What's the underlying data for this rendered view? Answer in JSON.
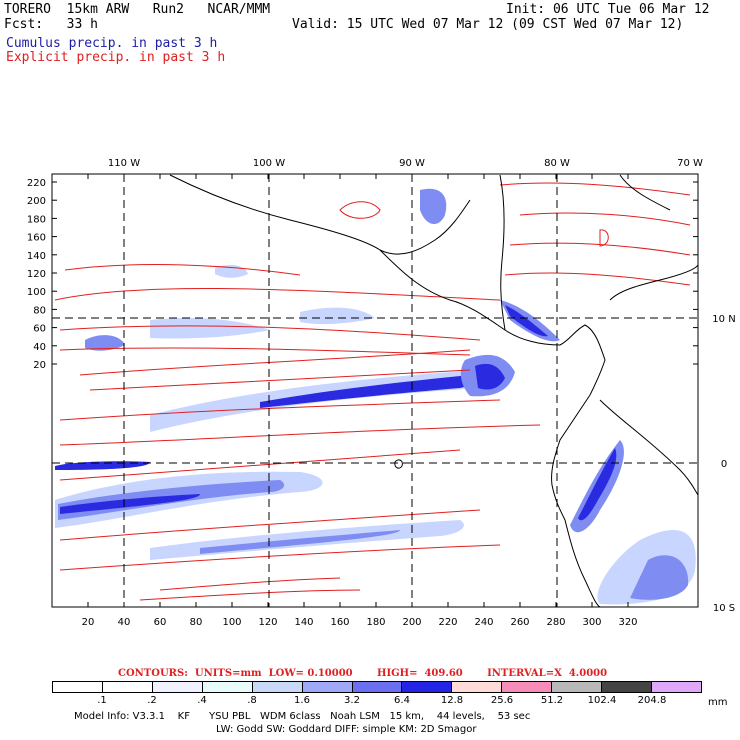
{
  "header": {
    "model": "TORERO  15km ARW   Run2   NCAR/MMM",
    "init": "Init: 06 UTC Tue 06 Mar 12",
    "fcst_label": "Fcst:   33 h",
    "valid": "Valid: 15 UTC Wed 07 Mar 12 (09 CST Wed 07 Mar 12)",
    "cumulus": "Cumulus precip. in past 3 h",
    "explicit": "Explicit precip. in past 3 h"
  },
  "map": {
    "top_axis": [
      "110 W",
      "100 W",
      "90 W",
      "80 W",
      "70 W"
    ],
    "right_axis": [
      "10 N",
      "0",
      "10 S"
    ],
    "left_axis": [
      "220",
      "200",
      "180",
      "160",
      "140",
      "120",
      "100",
      "80",
      "60",
      "40",
      "20"
    ],
    "bottom_axis": [
      "20",
      "40",
      "60",
      "80",
      "100",
      "120",
      "140",
      "160",
      "180",
      "200",
      "220",
      "240",
      "260",
      "280",
      "300",
      "320"
    ],
    "colors": {
      "contour": "#e02020",
      "precip_light": "#c8d6ff",
      "precip_mid": "#7f8cf2",
      "precip_dark": "#2a2ae0",
      "coast": "#000000"
    }
  },
  "footer": {
    "contours": "CONTOURS:  UNITS=mm  LOW= 0.10000       HIGH=  409.60       INTERVAL=X  4.0000",
    "legend_labels": [
      ".1",
      ".2",
      ".4",
      ".8",
      "1.6",
      "3.2",
      "6.4",
      "12.8",
      "25.6",
      "51.2",
      "102.4",
      "204.8"
    ],
    "legend_colors": [
      "#ffffff",
      "#ffffff",
      "#f0f2ff",
      "#e8fcfc",
      "#c8d8f6",
      "#a0a8f8",
      "#6a70f0",
      "#2424e6",
      "#ffdcd8",
      "#f68cb8",
      "#b8b8b8",
      "#444444",
      "#e0a8f8"
    ],
    "units": "mm",
    "model_info": "Model Info: V3.3.1    KF      YSU PBL   WDM 6class   Noah LSM   15 km,    44 levels,    53 sec",
    "model_info2": "LW: Godd SW: Goddard DIFF: simple KM: 2D Smagor"
  }
}
